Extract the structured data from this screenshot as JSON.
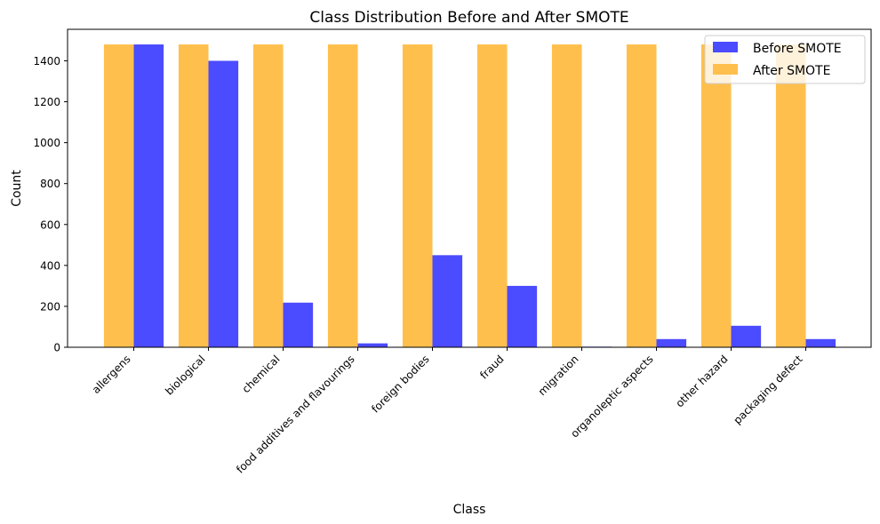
{
  "chart_data": {
    "type": "bar",
    "title": "Class Distribution Before and After SMOTE",
    "xlabel": "Class",
    "ylabel": "Count",
    "categories": [
      "allergens",
      "biological",
      "chemical",
      "food additives and flavourings",
      "foreign bodies",
      "fraud",
      "migration",
      "organoleptic aspects",
      "other hazard",
      "packaging defect"
    ],
    "series": [
      {
        "name": "Before SMOTE",
        "color": "#4b4bff",
        "values": [
          1480,
          1400,
          218,
          19,
          450,
          300,
          3,
          40,
          105,
          40
        ]
      },
      {
        "name": "After SMOTE",
        "color": "#ffbf4d",
        "values": [
          1480,
          1480,
          1480,
          1480,
          1480,
          1480,
          1480,
          1480,
          1480,
          1480
        ]
      }
    ],
    "ylim": [
      0,
      1554
    ],
    "yticks": [
      0,
      200,
      400,
      600,
      800,
      1000,
      1200,
      1400
    ],
    "legend": "top-right",
    "grid": false
  }
}
